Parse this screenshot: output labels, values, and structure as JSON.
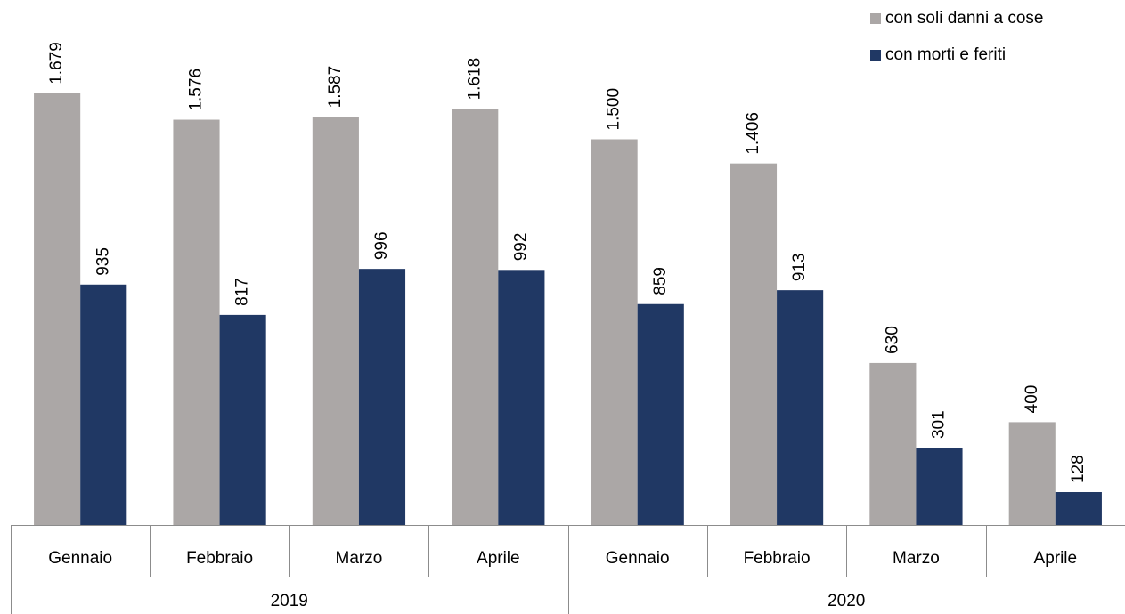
{
  "chart_data": {
    "type": "bar",
    "categories": [
      "Gennaio",
      "Febbraio",
      "Marzo",
      "Aprile",
      "Gennaio",
      "Febbraio",
      "Marzo",
      "Aprile"
    ],
    "group_labels": [
      "2019",
      "2020"
    ],
    "series": [
      {
        "name": "con soli danni a cose",
        "color": "#aba7a6",
        "values": [
          1679,
          1576,
          1587,
          1618,
          1500,
          1406,
          630,
          400
        ],
        "value_labels": [
          "1.679",
          "1.576",
          "1.587",
          "1.618",
          "1.500",
          "1.406",
          "630",
          "400"
        ]
      },
      {
        "name": "con morti e feriti",
        "color": "#203864",
        "values": [
          935,
          817,
          996,
          992,
          859,
          913,
          301,
          128
        ],
        "value_labels": [
          "935",
          "817",
          "996",
          "992",
          "859",
          "913",
          "301",
          "128"
        ]
      }
    ],
    "ylim": [
      0,
      2000
    ],
    "legend": "top-right"
  }
}
